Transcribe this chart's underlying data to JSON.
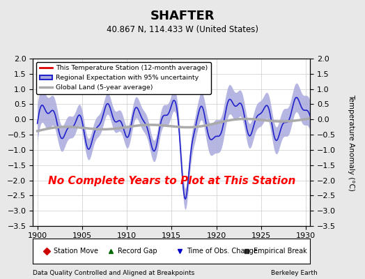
{
  "title": "SHAFTER",
  "subtitle": "40.867 N, 114.433 W (United States)",
  "ylabel": "Temperature Anomaly (°C)",
  "xlabel_left": "Data Quality Controlled and Aligned at Breakpoints",
  "xlabel_right": "Berkeley Earth",
  "no_data_text": "No Complete Years to Plot at This Station",
  "xlim": [
    1899.5,
    1930.5
  ],
  "ylim": [
    -3.5,
    2.0
  ],
  "yticks": [
    2.0,
    1.5,
    1.0,
    0.5,
    0.0,
    -0.5,
    -1.0,
    -1.5,
    -2.0,
    -2.5,
    -3.0,
    -3.5
  ],
  "xticks": [
    1900,
    1905,
    1910,
    1915,
    1920,
    1925,
    1930
  ],
  "bg_color": "#e8e8e8",
  "plot_bg_color": "#ffffff",
  "regional_color": "#2222cc",
  "regional_fill_color": "#aaaadd",
  "global_color": "#aaaaaa",
  "station_color": "#dd0000",
  "legend_items": [
    {
      "label": "This Temperature Station (12-month average)",
      "color": "#dd0000",
      "lw": 2
    },
    {
      "label": "Regional Expectation with 95% uncertainty",
      "color": "#2222cc",
      "lw": 2
    },
    {
      "label": "Global Land (5-year average)",
      "color": "#aaaaaa",
      "lw": 2
    }
  ],
  "bottom_legend": [
    {
      "label": "Station Move",
      "marker": "D",
      "color": "#cc0000"
    },
    {
      "label": "Record Gap",
      "marker": "^",
      "color": "#006600"
    },
    {
      "label": "Time of Obs. Change",
      "marker": "v",
      "color": "#0000cc"
    },
    {
      "label": "Empirical Break",
      "marker": "s",
      "color": "#333333"
    }
  ]
}
